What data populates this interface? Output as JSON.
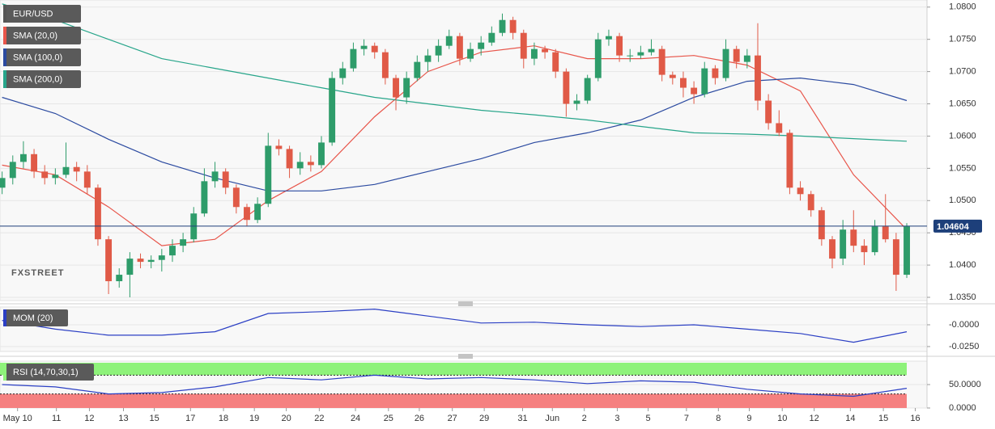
{
  "chart_data": [
    {
      "type": "candlestick",
      "title": "EUR/USD",
      "watermark": "FXSTREET",
      "up_color": "#2e9c6a",
      "down_color": "#e05a47",
      "xlim": [
        -0.2,
        86.9
      ],
      "ylim": [
        1.0345,
        1.0811
      ],
      "yticks": [
        {
          "value": 1.08,
          "label": "1.0800"
        },
        {
          "value": 1.075,
          "label": "1.0750"
        },
        {
          "value": 1.07,
          "label": "1.0700"
        },
        {
          "value": 1.065,
          "label": "1.0650"
        },
        {
          "value": 1.06,
          "label": "1.0600"
        },
        {
          "value": 1.055,
          "label": "1.0550"
        },
        {
          "value": 1.05,
          "label": "1.0500"
        },
        {
          "value": 1.045,
          "label": "1.0450"
        },
        {
          "value": 1.04,
          "label": "1.0400"
        },
        {
          "value": 1.035,
          "label": "1.0350"
        }
      ],
      "grid": true,
      "ohlc": [
        [
          1.052,
          1.0545,
          1.051,
          1.0535
        ],
        [
          1.0535,
          1.057,
          1.0525,
          1.056
        ],
        [
          1.056,
          1.0592,
          1.055,
          1.0572
        ],
        [
          1.0572,
          1.058,
          1.0535,
          1.0545
        ],
        [
          1.0545,
          1.0555,
          1.0525,
          1.0535
        ],
        [
          1.0535,
          1.055,
          1.0525,
          1.054
        ],
        [
          1.054,
          1.059,
          1.0535,
          1.0552
        ],
        [
          1.0552,
          1.056,
          1.053,
          1.0545
        ],
        [
          1.0545,
          1.0555,
          1.051,
          1.052
        ],
        [
          1.052,
          1.0525,
          1.043,
          1.044
        ],
        [
          1.044,
          1.0445,
          1.0355,
          1.0375
        ],
        [
          1.0375,
          1.0395,
          1.0365,
          1.0385
        ],
        [
          1.0385,
          1.042,
          1.035,
          1.041
        ],
        [
          1.041,
          1.0418,
          1.0395,
          1.0405
        ],
        [
          1.0405,
          1.0415,
          1.0395,
          1.0408
        ],
        [
          1.0408,
          1.0425,
          1.039,
          1.0415
        ],
        [
          1.0415,
          1.044,
          1.0405,
          1.043
        ],
        [
          1.043,
          1.045,
          1.042,
          1.044
        ],
        [
          1.044,
          1.049,
          1.0435,
          1.048
        ],
        [
          1.048,
          1.055,
          1.0475,
          1.053
        ],
        [
          1.053,
          1.056,
          1.052,
          1.0545
        ],
        [
          1.0545,
          1.055,
          1.051,
          1.052
        ],
        [
          1.052,
          1.0525,
          1.048,
          1.049
        ],
        [
          1.049,
          1.0495,
          1.046,
          1.047
        ],
        [
          1.047,
          1.0505,
          1.0465,
          1.0495
        ],
        [
          1.0495,
          1.0605,
          1.049,
          1.0585
        ],
        [
          1.0585,
          1.0595,
          1.057,
          1.058
        ],
        [
          1.058,
          1.0585,
          1.0535,
          1.055
        ],
        [
          1.055,
          1.0575,
          1.054,
          1.056
        ],
        [
          1.056,
          1.057,
          1.0545,
          1.0555
        ],
        [
          1.0555,
          1.06,
          1.055,
          1.059
        ],
        [
          1.059,
          1.07,
          1.0585,
          1.069
        ],
        [
          1.069,
          1.0715,
          1.068,
          1.0705
        ],
        [
          1.0705,
          1.0745,
          1.07,
          1.0735
        ],
        [
          1.0735,
          1.075,
          1.0725,
          1.074
        ],
        [
          1.074,
          1.0745,
          1.072,
          1.073
        ],
        [
          1.073,
          1.0735,
          1.068,
          1.069
        ],
        [
          1.069,
          1.0695,
          1.064,
          1.066
        ],
        [
          1.066,
          1.07,
          1.065,
          1.069
        ],
        [
          1.069,
          1.0725,
          1.0685,
          1.0715
        ],
        [
          1.0715,
          1.0735,
          1.07,
          1.0725
        ],
        [
          1.0725,
          1.075,
          1.0715,
          1.074
        ],
        [
          1.074,
          1.0765,
          1.0735,
          1.0755
        ],
        [
          1.0755,
          1.076,
          1.071,
          1.072
        ],
        [
          1.072,
          1.0745,
          1.0715,
          1.0735
        ],
        [
          1.0735,
          1.0755,
          1.0725,
          1.0745
        ],
        [
          1.0745,
          1.077,
          1.074,
          1.076
        ],
        [
          1.076,
          1.079,
          1.0755,
          1.078
        ],
        [
          1.078,
          1.0785,
          1.075,
          1.076
        ],
        [
          1.076,
          1.0765,
          1.0705,
          1.072
        ],
        [
          1.072,
          1.0745,
          1.071,
          1.0735
        ],
        [
          1.0735,
          1.074,
          1.072,
          1.073
        ],
        [
          1.073,
          1.0735,
          1.069,
          1.07
        ],
        [
          1.07,
          1.0705,
          1.063,
          1.065
        ],
        [
          1.065,
          1.0665,
          1.064,
          1.0655
        ],
        [
          1.0655,
          1.0695,
          1.065,
          1.069
        ],
        [
          1.069,
          1.076,
          1.0685,
          1.075
        ],
        [
          1.075,
          1.0765,
          1.074,
          1.0755
        ],
        [
          1.0755,
          1.076,
          1.0715,
          1.0725
        ],
        [
          1.0725,
          1.0735,
          1.0715,
          1.0725
        ],
        [
          1.0725,
          1.074,
          1.072,
          1.073
        ],
        [
          1.073,
          1.075,
          1.0725,
          1.0735
        ],
        [
          1.0735,
          1.074,
          1.0685,
          1.0695
        ],
        [
          1.0695,
          1.07,
          1.068,
          1.069
        ],
        [
          1.069,
          1.07,
          1.066,
          1.0675
        ],
        [
          1.0675,
          1.0685,
          1.065,
          1.0665
        ],
        [
          1.0665,
          1.0715,
          1.066,
          1.0705
        ],
        [
          1.0705,
          1.071,
          1.068,
          1.069
        ],
        [
          1.069,
          1.075,
          1.0685,
          1.0735
        ],
        [
          1.0735,
          1.074,
          1.0705,
          1.0715
        ],
        [
          1.0715,
          1.0735,
          1.0705,
          1.0725
        ],
        [
          1.0725,
          1.0775,
          1.064,
          1.0655
        ],
        [
          1.0655,
          1.0665,
          1.061,
          1.062
        ],
        [
          1.062,
          1.064,
          1.06,
          1.0605
        ],
        [
          1.0605,
          1.061,
          1.051,
          1.052
        ],
        [
          1.052,
          1.053,
          1.05,
          1.051
        ],
        [
          1.051,
          1.0515,
          1.0475,
          1.0485
        ],
        [
          1.0485,
          1.049,
          1.043,
          1.044
        ],
        [
          1.044,
          1.0445,
          1.0395,
          1.041
        ],
        [
          1.041,
          1.047,
          1.04,
          1.0455
        ],
        [
          1.0455,
          1.0485,
          1.042,
          1.043
        ],
        [
          1.043,
          1.044,
          1.04,
          1.042
        ],
        [
          1.042,
          1.047,
          1.0415,
          1.046
        ],
        [
          1.046,
          1.051,
          1.0435,
          1.044
        ],
        [
          1.044,
          1.045,
          1.036,
          1.0385
        ],
        [
          1.0385,
          1.0465,
          1.038,
          1.046
        ]
      ],
      "line_x": [
        0,
        5,
        10,
        15,
        20,
        25,
        30,
        35,
        40,
        45,
        50,
        55,
        60,
        65,
        70,
        75,
        80,
        85
      ],
      "lines": [
        {
          "name": "SMA (20,0)",
          "color": "#e8554a",
          "values": [
            1.0555,
            1.054,
            1.049,
            1.043,
            1.044,
            1.05,
            1.0545,
            1.063,
            1.07,
            1.073,
            1.074,
            1.072,
            1.072,
            1.0725,
            1.071,
            1.067,
            1.054,
            1.0455
          ]
        },
        {
          "name": "SMA (100,0)",
          "color": "#2b4aa0",
          "values": [
            1.066,
            1.0635,
            1.0595,
            1.056,
            1.0535,
            1.0515,
            1.0515,
            1.0525,
            1.0545,
            1.0565,
            1.059,
            1.0605,
            1.0625,
            1.066,
            1.0685,
            1.069,
            1.068,
            1.0655
          ]
        },
        {
          "name": "SMA (200,0)",
          "color": "#27a58a",
          "values": [
            1.0805,
            1.078,
            1.075,
            1.072,
            1.0705,
            1.069,
            1.0675,
            1.066,
            1.065,
            1.064,
            1.0633,
            1.0625,
            1.0615,
            1.0605,
            1.0603,
            1.06,
            1.0596,
            1.0592
          ]
        }
      ],
      "last_price": 1.04604,
      "last_price_color": "#1d3f7a"
    },
    {
      "type": "line",
      "title": "MOM (20)",
      "color": "#2b3fc4",
      "xlim": [
        -0.2,
        86.9
      ],
      "ylim": [
        -0.0306,
        0.0204
      ],
      "yticks": [
        {
          "value": 0,
          "label": "-0.0000"
        },
        {
          "value": -0.025,
          "label": "-0.0250"
        }
      ],
      "x": [
        0,
        5,
        10,
        15,
        20,
        25,
        30,
        35,
        40,
        45,
        50,
        55,
        60,
        65,
        70,
        75,
        80,
        85
      ],
      "values": [
        0.005,
        -0.005,
        -0.012,
        -0.012,
        -0.008,
        0.013,
        0.015,
        0.018,
        0.01,
        0.002,
        0.003,
        0.0,
        -0.002,
        0.0,
        -0.005,
        -0.01,
        -0.02,
        -0.008
      ]
    },
    {
      "type": "rsi",
      "title": "RSI (14,70,30,1)",
      "color": "#2b3fc4",
      "overbought": 70,
      "oversold": 30,
      "overbought_color": "#8ef27a",
      "oversold_color": "#f58080",
      "xlim": [
        -0.2,
        86.9
      ],
      "ylim": [
        0,
        100
      ],
      "yticks": [
        {
          "value": 50,
          "label": "50.0000"
        },
        {
          "value": 0,
          "label": "0.0000"
        }
      ],
      "x": [
        0,
        5,
        10,
        15,
        20,
        25,
        30,
        35,
        40,
        45,
        50,
        55,
        60,
        65,
        70,
        75,
        80,
        85
      ],
      "values": [
        50,
        45,
        30,
        33,
        45,
        65,
        60,
        70,
        62,
        65,
        60,
        52,
        58,
        55,
        40,
        30,
        25,
        42
      ],
      "xticks": [
        {
          "value": 1.45,
          "label": "May 10"
        },
        {
          "value": 5.1,
          "label": "11"
        },
        {
          "value": 8.2,
          "label": "12"
        },
        {
          "value": 11.4,
          "label": "13"
        },
        {
          "value": 14.3,
          "label": "15"
        },
        {
          "value": 17.7,
          "label": "17"
        },
        {
          "value": 20.8,
          "label": "18"
        },
        {
          "value": 23.7,
          "label": "19"
        },
        {
          "value": 26.7,
          "label": "20"
        },
        {
          "value": 29.8,
          "label": "22"
        },
        {
          "value": 33.2,
          "label": "24"
        },
        {
          "value": 36.3,
          "label": "25"
        },
        {
          "value": 39.2,
          "label": "26"
        },
        {
          "value": 42.3,
          "label": "27"
        },
        {
          "value": 45.3,
          "label": "29"
        },
        {
          "value": 48.9,
          "label": "31"
        },
        {
          "value": 51.7,
          "label": "Jun"
        },
        {
          "value": 54.7,
          "label": "2"
        },
        {
          "value": 57.8,
          "label": "3"
        },
        {
          "value": 60.7,
          "label": "5"
        },
        {
          "value": 64.3,
          "label": "7"
        },
        {
          "value": 67.3,
          "label": "8"
        },
        {
          "value": 70.2,
          "label": "9"
        },
        {
          "value": 73.3,
          "label": "10"
        },
        {
          "value": 76.3,
          "label": "12"
        },
        {
          "value": 79.7,
          "label": "14"
        },
        {
          "value": 82.8,
          "label": "15"
        },
        {
          "value": 85.8,
          "label": "16"
        }
      ]
    }
  ]
}
